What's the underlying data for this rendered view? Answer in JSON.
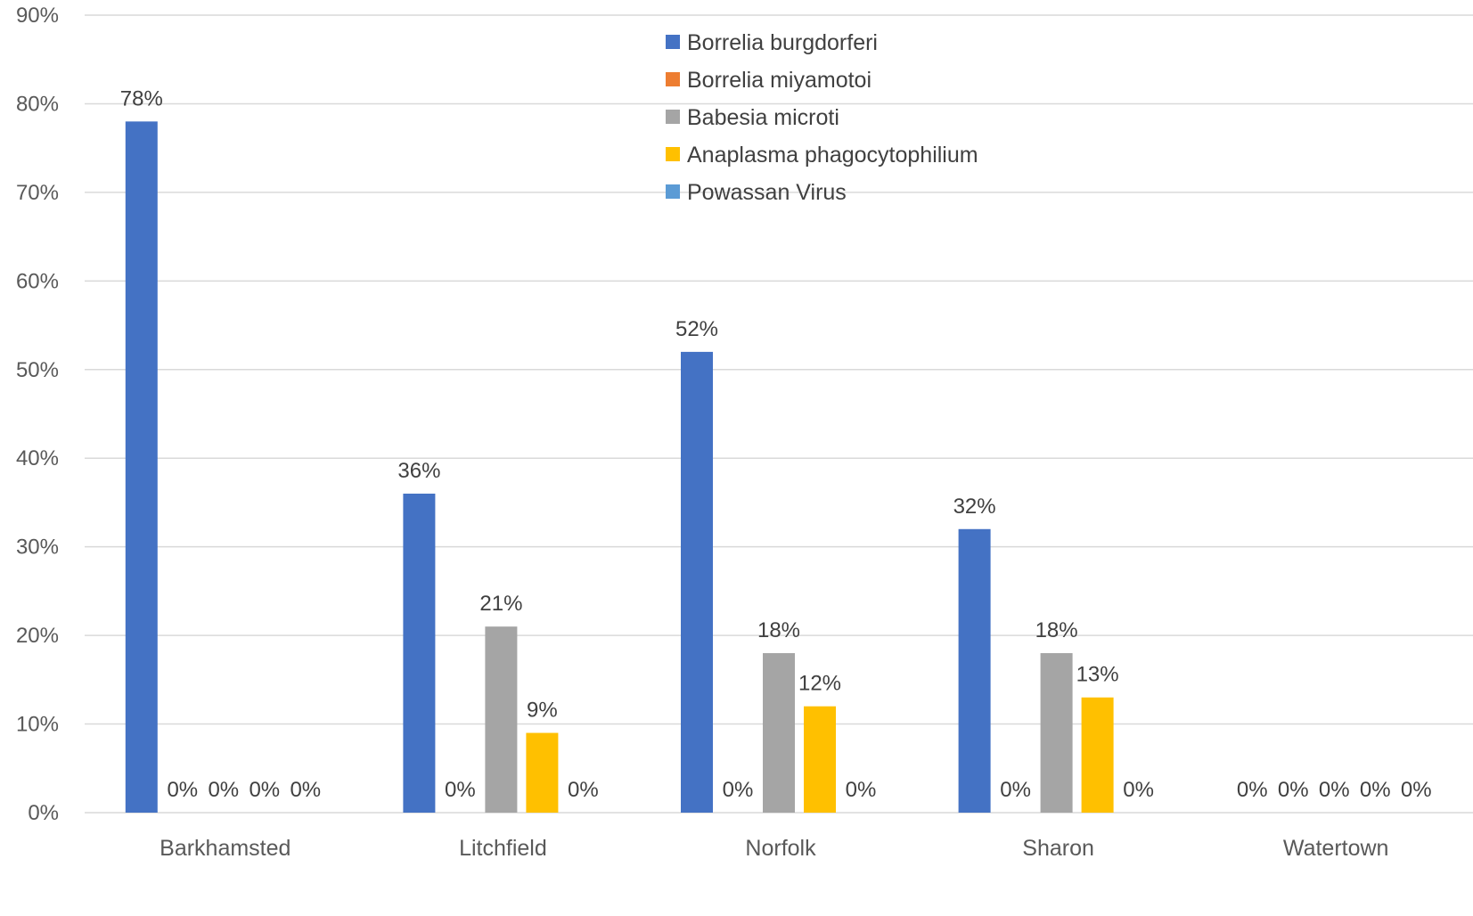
{
  "chart_data": {
    "type": "bar",
    "categories": [
      "Barkhamsted",
      "Litchfield",
      "Norfolk",
      "Sharon",
      "Watertown"
    ],
    "series": [
      {
        "name": "Borrelia burgdorferi",
        "color": "#4472C4",
        "values": [
          78,
          36,
          52,
          32,
          0
        ]
      },
      {
        "name": "Borrelia miyamotoi",
        "color": "#ED7D31",
        "values": [
          0,
          0,
          0,
          0,
          0
        ]
      },
      {
        "name": "Babesia microti",
        "color": "#A5A5A5",
        "values": [
          0,
          21,
          18,
          18,
          0
        ]
      },
      {
        "name": "Anaplasma phagocytophilium",
        "color": "#FFC000",
        "values": [
          0,
          9,
          12,
          13,
          0
        ]
      },
      {
        "name": "Powassan Virus",
        "color": "#5B9BD5",
        "values": [
          0,
          0,
          0,
          0,
          0
        ]
      }
    ],
    "data_labels": [
      [
        "78%",
        "0%",
        "0%",
        "0%",
        "0%"
      ],
      [
        "36%",
        "0%",
        "21%",
        "9%",
        "0%"
      ],
      [
        "52%",
        "0%",
        "18%",
        "12%",
        "0%"
      ],
      [
        "32%",
        "0%",
        "18%",
        "13%",
        "0%"
      ],
      [
        "0%",
        "0%",
        "0%",
        "0%",
        "0%"
      ]
    ],
    "y_ticks": [
      "0%",
      "10%",
      "20%",
      "30%",
      "40%",
      "50%",
      "60%",
      "70%",
      "80%",
      "90%"
    ],
    "ylim": [
      0,
      90
    ],
    "grid": true,
    "legend_position": "top-center",
    "title": "",
    "xlabel": "",
    "ylabel": ""
  },
  "colors": {
    "gridline": "#D9D9D9",
    "axis_text": "#595959",
    "label_text": "#404040"
  }
}
